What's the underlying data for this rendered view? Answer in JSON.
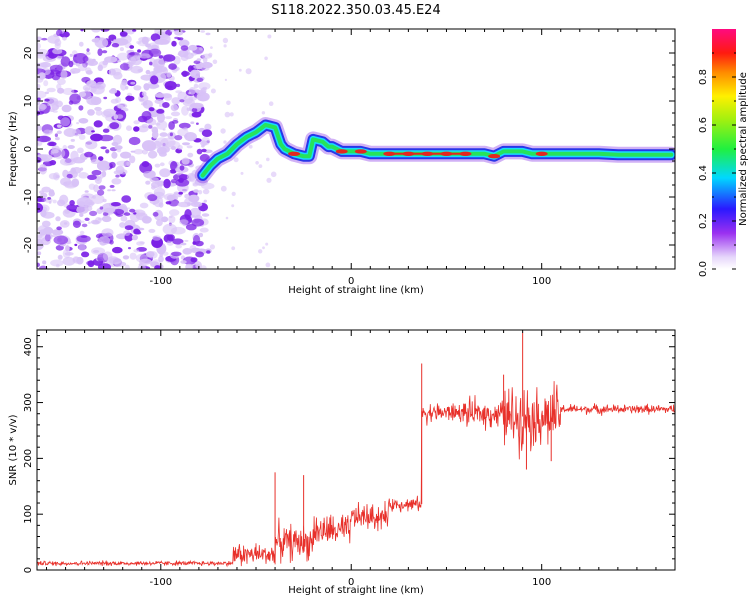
{
  "figure": {
    "title": "S118.2022.350.03.45.E24"
  },
  "colors": {
    "snr_line": "#e8302a",
    "scatter_purple": "#7a1fe6",
    "scatter_lavender": "#d8c2f7",
    "ridge_core": "#e3271f",
    "ridge_mid": "#26e35b",
    "ridge_outer": "#1d2fe8",
    "ridge_halo": "#7a1fe6"
  },
  "chart_data": [
    {
      "type": "heatmap",
      "xlabel": "Height of straight line (km)",
      "ylabel": "Frequency (Hz)",
      "xlim": [
        -165,
        170
      ],
      "ylim": [
        -25,
        25
      ],
      "x_ticks": [
        -100,
        0,
        100
      ],
      "x_tick_labels": [
        "-100",
        "0",
        "100"
      ],
      "y_ticks": [
        -20,
        -10,
        0,
        10,
        20
      ],
      "y_tick_labels": [
        "-20",
        "-10",
        "0",
        "10",
        "20"
      ],
      "grid": false,
      "colorbar": {
        "label": "Normalized spectral amplitude",
        "range": [
          0,
          1
        ],
        "ticks": [
          0.0,
          0.2,
          0.4,
          0.6,
          0.8
        ],
        "tick_labels": [
          "0.0",
          "0.2",
          "0.4",
          "0.6",
          "0.8"
        ]
      },
      "ridge": {
        "x": [
          -78,
          -74,
          -70,
          -65,
          -60,
          -55,
          -50,
          -45,
          -40,
          -37,
          -35,
          -30,
          -25,
          -22,
          -20,
          -15,
          -12,
          -10,
          -5,
          0,
          5,
          10,
          20,
          30,
          40,
          50,
          60,
          70,
          75,
          80,
          85,
          90,
          95,
          100,
          110,
          120,
          130,
          140,
          150,
          160,
          168
        ],
        "y": [
          -5.5,
          -3.5,
          -2,
          -1,
          1,
          2.5,
          3.5,
          5,
          4.5,
          1,
          0,
          -1,
          -1.5,
          -1.5,
          2,
          1.5,
          0.5,
          0.5,
          -0.5,
          -0.5,
          -0.5,
          -1,
          -1,
          -1,
          -1,
          -1,
          -1,
          -1,
          -1.5,
          -0.5,
          -0.5,
          -0.5,
          -1,
          -1,
          -1,
          -1,
          -1,
          -1.2,
          -1.2,
          -1.2,
          -1.2
        ],
        "strong_x": [
          -30,
          -5,
          5,
          20,
          30,
          40,
          50,
          60,
          75,
          100
        ]
      },
      "noise_region": {
        "x": [
          -165,
          -75
        ],
        "y": [
          -25,
          25
        ]
      }
    },
    {
      "type": "line",
      "xlabel": "Height of straight line (km)",
      "ylabel": "SNR (10 * v/v)",
      "xlim": [
        -165,
        170
      ],
      "ylim": [
        0,
        430
      ],
      "x_ticks": [
        -100,
        0,
        100
      ],
      "x_tick_labels": [
        "-100",
        "0",
        "100"
      ],
      "y_ticks": [
        0,
        100,
        200,
        300,
        400
      ],
      "y_tick_labels": [
        "0",
        "100",
        "200",
        "300",
        "400"
      ],
      "grid": false,
      "series": [
        {
          "segments": [
            {
              "x_range": [
                -165,
                -62
              ],
              "base": 12,
              "noise": 6
            },
            {
              "x_range": [
                -62,
                -40
              ],
              "base": 28,
              "noise": 30
            },
            {
              "x_range": [
                -40,
                -20
              ],
              "base": 50,
              "noise": 45
            },
            {
              "x_range": [
                -20,
                0
              ],
              "base": 70,
              "noise": 40
            },
            {
              "x_range": [
                0,
                20
              ],
              "base": 95,
              "noise": 35
            },
            {
              "x_range": [
                20,
                37
              ],
              "base": 118,
              "noise": 18
            },
            {
              "x_range": [
                37,
                60
              ],
              "base": 282,
              "noise": 25
            },
            {
              "x_range": [
                60,
                80
              ],
              "base": 280,
              "noise": 35
            },
            {
              "x_range": [
                80,
                110
              ],
              "base": 275,
              "noise": 80
            },
            {
              "x_range": [
                110,
                170
              ],
              "base": 288,
              "noise": 12
            }
          ],
          "peaks": [
            {
              "x": -40,
              "y": 175
            },
            {
              "x": -25,
              "y": 170
            },
            {
              "x": 37,
              "y": 370
            },
            {
              "x": 80,
              "y": 350
            },
            {
              "x": 90,
              "y": 425
            },
            {
              "x": 92,
              "y": 180
            },
            {
              "x": 105,
              "y": 195
            }
          ]
        }
      ]
    }
  ]
}
